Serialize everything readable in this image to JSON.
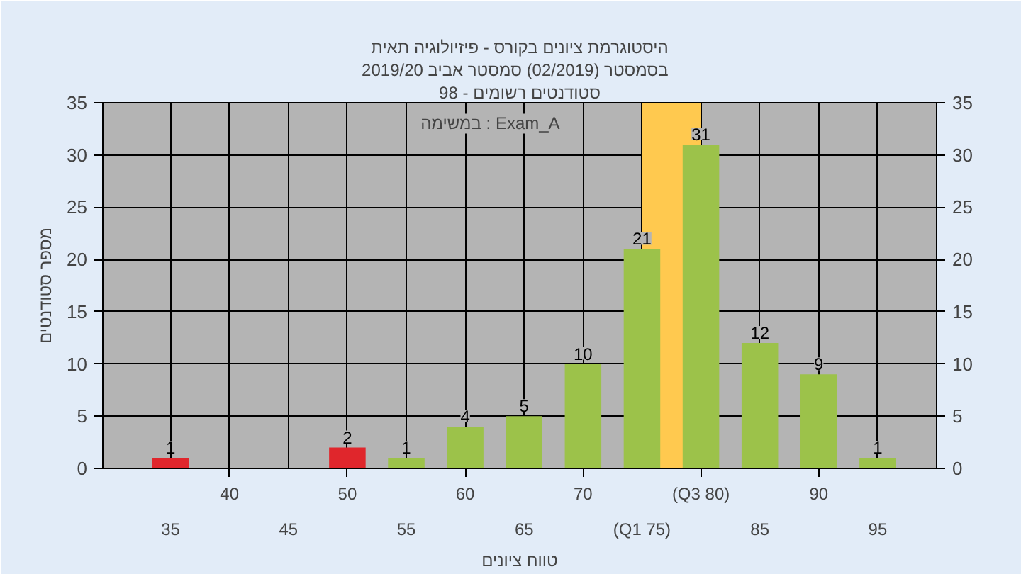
{
  "chart_data": {
    "type": "bar",
    "title": "היסטוגרמת ציונים בקורס - פיזיולוגיה תאית",
    "subtitle": "בסמסטר  (02/2019)  סמסטר אביב 2019/20",
    "xlabel": "טווח ציונים",
    "ylabel": "מספר סטודנטים",
    "annotations": [
      "סטודנטים רשומים - 98",
      "במשימה : Exam_A"
    ],
    "categories": [
      "35",
      "40",
      "45",
      "50",
      "55",
      "60",
      "65",
      "70",
      "(Q1 75)",
      "(Q3 80)",
      "85",
      "90",
      "95"
    ],
    "values": [
      1,
      0,
      0,
      2,
      1,
      4,
      5,
      10,
      21,
      31,
      12,
      9,
      1
    ],
    "colors": [
      "#e0262c",
      "#e0262c",
      "#e0262c",
      "#e0262c",
      "#9cc24a",
      "#9cc24a",
      "#9cc24a",
      "#9cc24a",
      "#9cc24a",
      "#9cc24a",
      "#9cc24a",
      "#9cc24a",
      "#9cc24a"
    ],
    "value_labels": [
      "1",
      null,
      null,
      "2",
      "1",
      "4",
      "5",
      "10",
      "21",
      "31",
      "12",
      "9",
      "1"
    ],
    "ylim": [
      0,
      35
    ],
    "yticks": [
      0,
      5,
      10,
      15,
      20,
      25,
      30,
      35
    ],
    "y2lim": [
      0,
      35
    ],
    "y2ticks": [
      0,
      5,
      10,
      15,
      20,
      25,
      30,
      35
    ],
    "bands": [
      {
        "axis": "x",
        "from": "(Q1 75)",
        "to": "(Q3 80)",
        "color": "#ffc94f"
      }
    ],
    "grid": true
  }
}
